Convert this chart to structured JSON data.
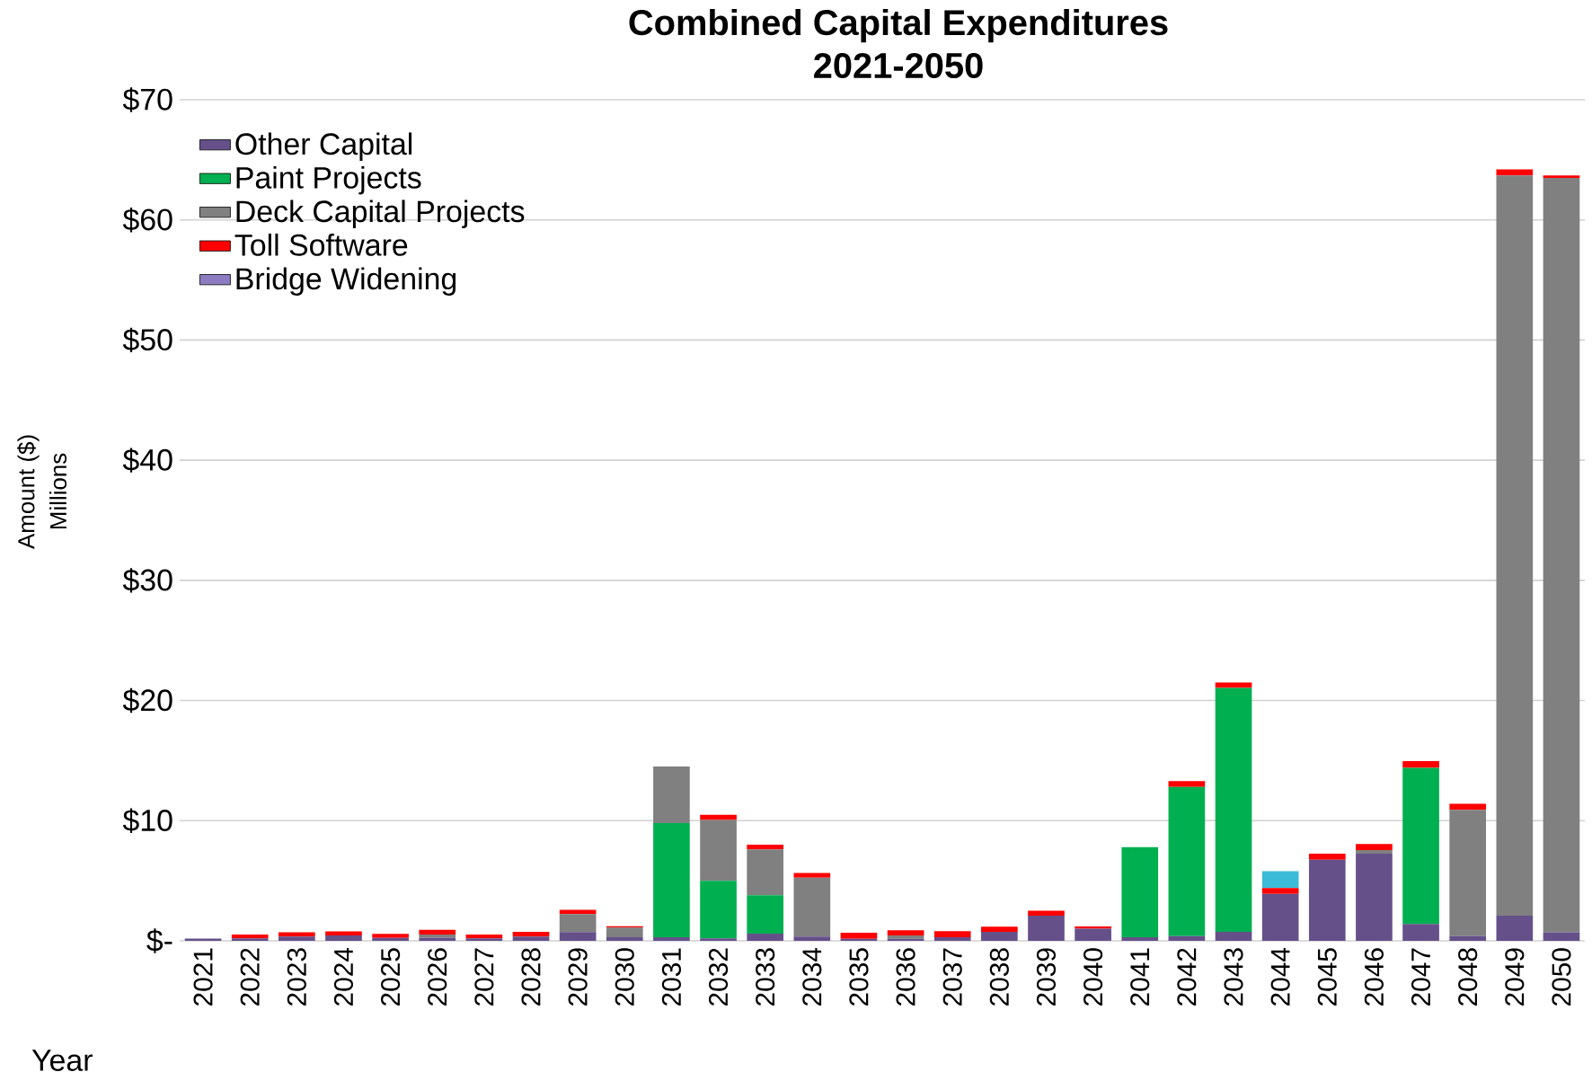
{
  "chart_data": {
    "type": "bar",
    "stacked": true,
    "title": "Combined Capital Expenditures",
    "subtitle": "2021-2050",
    "xlabel": "Year",
    "ylabel": "Amount ($)",
    "annotations": [
      "Millions"
    ],
    "categories": [
      "2021",
      "2022",
      "2023",
      "2024",
      "2025",
      "2026",
      "2027",
      "2028",
      "2029",
      "2030",
      "2031",
      "2032",
      "2033",
      "2034",
      "2035",
      "2036",
      "2037",
      "2038",
      "2039",
      "2040",
      "2041",
      "2042",
      "2043",
      "2044",
      "2045",
      "2046",
      "2047",
      "2048",
      "2049",
      "2050"
    ],
    "series": [
      {
        "name": "Other Capital",
        "color": "#65508a",
        "values": [
          0.18,
          0.2,
          0.35,
          0.45,
          0.25,
          0.25,
          0.2,
          0.35,
          0.72,
          0.3,
          0.3,
          0.2,
          0.6,
          0.35,
          0.17,
          0.17,
          0.3,
          0.74,
          2.1,
          1.0,
          0.3,
          0.4,
          0.75,
          3.9,
          6.75,
          7.25,
          1.4,
          0.4,
          2.1,
          0.7
        ]
      },
      {
        "name": "Paint Projects",
        "color": "#00b050",
        "values": [
          0,
          0,
          0,
          0,
          0,
          0,
          0,
          0,
          0,
          0,
          9.5,
          4.8,
          3.2,
          0,
          0,
          0,
          0,
          0,
          0,
          0,
          7.5,
          12.4,
          20.3,
          0,
          0,
          0,
          13.0,
          0,
          0,
          0
        ]
      },
      {
        "name": "Deck Capital Projects",
        "color": "#808080",
        "values": [
          0,
          0,
          0,
          0,
          0,
          0.28,
          0,
          0,
          1.5,
          0.8,
          4.7,
          5.05,
          3.8,
          4.9,
          0,
          0.28,
          0,
          0,
          0,
          0,
          0,
          0,
          0,
          0,
          0,
          0.3,
          0,
          10.5,
          61.6,
          62.8
        ]
      },
      {
        "name": "Toll Software",
        "color": "#ff0000",
        "values": [
          0,
          0.33,
          0.35,
          0.33,
          0.33,
          0.38,
          0.33,
          0.4,
          0.36,
          0.12,
          0,
          0.43,
          0.4,
          0.4,
          0.5,
          0.43,
          0.5,
          0.43,
          0.4,
          0.2,
          0,
          0.5,
          0.45,
          0.5,
          0.5,
          0.5,
          0.55,
          0.5,
          0.5,
          0.2
        ]
      },
      {
        "name": "Bridge Widening",
        "color": "#8e7cc3",
        "values": [
          0,
          0,
          0,
          0,
          0,
          0,
          0,
          0,
          0,
          0,
          0,
          0,
          0,
          0,
          0,
          0,
          0,
          0,
          0,
          0,
          0,
          0,
          0,
          0,
          0,
          0,
          0,
          0,
          0,
          0
        ]
      },
      {
        "color": "#3bbbd8",
        "values": [
          0,
          0,
          0,
          0,
          0,
          0,
          0,
          0,
          0,
          0,
          0,
          0,
          0,
          0,
          0,
          0,
          0,
          0,
          0,
          0,
          0,
          0,
          0,
          1.4,
          0,
          0,
          0,
          0,
          0,
          0
        ]
      }
    ],
    "ylim": [
      0,
      70
    ],
    "yticks": [
      {
        "value": 0,
        "label": "$-"
      },
      {
        "value": 10,
        "label": "$10"
      },
      {
        "value": 20,
        "label": "$20"
      },
      {
        "value": 30,
        "label": "$30"
      },
      {
        "value": 40,
        "label": "$40"
      },
      {
        "value": 50,
        "label": "$50"
      },
      {
        "value": 60,
        "label": "$60"
      },
      {
        "value": 70,
        "label": "$70"
      }
    ],
    "grid": "y",
    "legend": "top left"
  }
}
